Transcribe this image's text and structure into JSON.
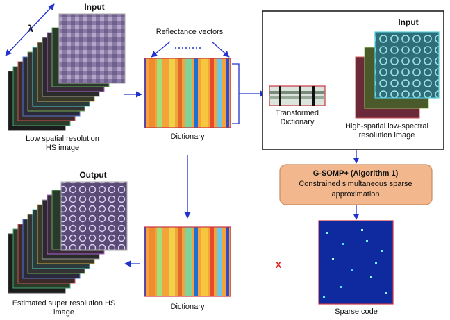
{
  "labels": {
    "input_top": "Input",
    "lambda": "λ",
    "low_res_line1": "Low spatial resolution",
    "low_res_line2": "HS image",
    "reflectance": "Reflectance vectors",
    "dictionary_top": "Dictionary",
    "input_box": "Input",
    "transformed_line1": "Transformed",
    "transformed_line2": "Dictionary",
    "high_res_line1": "High-spatial low-spectral",
    "high_res_line2": "resolution image",
    "algo_title": "G-SOMP+ (Algorithm 1)",
    "algo_line2": "Constrained simultaneous sparse",
    "algo_line3": "approximation",
    "output": "Output",
    "estimated_line1": "Estimated super resolution HS",
    "estimated_line2": "image",
    "dictionary_bottom": "Dictionary",
    "multiply": "X",
    "sparse": "Sparse code"
  },
  "colors": {
    "arrow": "#2233cc",
    "dict_border": "#cc3344",
    "algo_fill": "#f3b78e",
    "algo_border": "#c98a5e",
    "sparse_bg": "#0e2a9e",
    "multiply": "#dd2222"
  }
}
